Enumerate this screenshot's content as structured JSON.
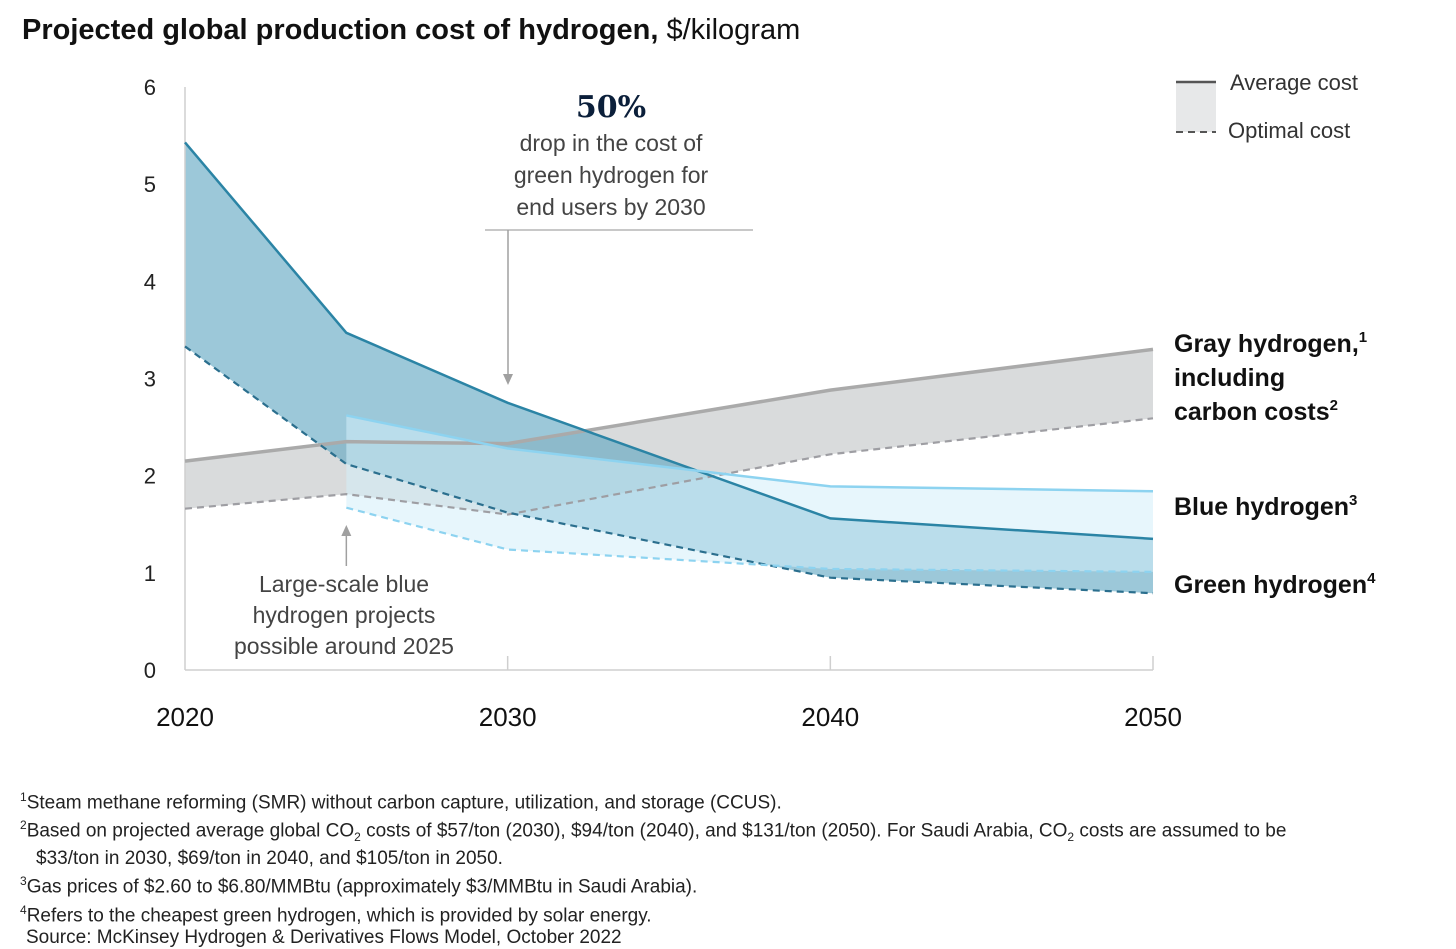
{
  "title": {
    "bold": "Projected global production cost of hydrogen,",
    "unit": "$/kilogram"
  },
  "chart_data": {
    "type": "area",
    "title": "Projected global production cost of hydrogen, $/kilogram",
    "ylim": [
      0,
      6
    ],
    "xlim": [
      2020,
      2050
    ],
    "y_ticks": [
      "0",
      "1",
      "2",
      "3",
      "4",
      "5",
      "6"
    ],
    "x_ticks": [
      "2020",
      "2030",
      "2040",
      "2050"
    ],
    "legend": {
      "placement": "top-right",
      "average": "Average cost",
      "optimal": "Optimal cost"
    },
    "series": [
      {
        "key": "gray",
        "label_lines": [
          "Gray hydrogen,",
          "including",
          "carbon costs"
        ],
        "label_sups": [
          "1",
          "",
          "2"
        ],
        "average": {
          "x": [
            2020,
            2025,
            2030,
            2040,
            2050
          ],
          "y": [
            2.15,
            2.35,
            2.33,
            2.88,
            3.3
          ]
        },
        "optimal": {
          "x": [
            2020,
            2025,
            2030,
            2040,
            2050
          ],
          "y": [
            1.66,
            1.81,
            1.6,
            2.22,
            2.59
          ]
        },
        "colors": {
          "line": "#aaaaaa",
          "dash": "#9e9ea3",
          "fill": "#d7d9da"
        }
      },
      {
        "key": "blue",
        "label_lines": [
          "Blue hydrogen"
        ],
        "label_sups": [
          "3"
        ],
        "average": {
          "x": [
            2025,
            2030,
            2040,
            2050
          ],
          "y": [
            2.62,
            2.28,
            1.89,
            1.84
          ]
        },
        "optimal": {
          "x": [
            2025,
            2030,
            2040,
            2050
          ],
          "y": [
            1.67,
            1.24,
            1.04,
            1.01
          ]
        },
        "colors": {
          "line": "#8dd3f0",
          "dash": "#8dd3f0",
          "fill": "#d4effa"
        }
      },
      {
        "key": "green",
        "label_lines": [
          "Green hydrogen"
        ],
        "label_sups": [
          "4"
        ],
        "average": {
          "x": [
            2020,
            2025,
            2030,
            2040,
            2050
          ],
          "y": [
            5.43,
            3.47,
            2.75,
            1.56,
            1.35
          ]
        },
        "optimal": {
          "x": [
            2020,
            2025,
            2030,
            2040,
            2050
          ],
          "y": [
            3.33,
            2.12,
            1.62,
            0.95,
            0.79
          ]
        },
        "colors": {
          "line": "#2b84a5",
          "dash": "#2b6f8e",
          "fill": "#5aa3c0"
        }
      }
    ],
    "annotations": [
      {
        "key": "drop",
        "headline": "50%",
        "lines": [
          "drop in the cost of",
          "green hydrogen for",
          "end users by 2030"
        ]
      },
      {
        "key": "blue_start",
        "lines": [
          "Large-scale blue",
          "hydrogen projects",
          "possible around 2025"
        ]
      }
    ]
  },
  "footnotes": {
    "n1": {
      "sup": "1",
      "text": "Steam methane reforming (SMR) without carbon capture, utilization, and storage (CCUS)."
    },
    "n2": {
      "sup": "2",
      "a": "Based on projected average global CO",
      "b": " costs of $57/ton (2030), $94/ton (2040), and $131/ton (2050). For Saudi Arabia, CO",
      "c": " costs are assumed to be",
      "sub": "2",
      "cont": "$33/ton in 2030, $69/ton in 2040, and $105/ton in 2050."
    },
    "n3": {
      "sup": "3",
      "text": "Gas prices of $2.60 to $6.80/MMBtu (approximately $3/MMBtu in Saudi Arabia)."
    },
    "n4": {
      "sup": "4",
      "text": "Refers to the cheapest green hydrogen, which is provided by solar energy."
    },
    "source": "Source: McKinsey Hydrogen & Derivatives Flows Model, October 2022"
  }
}
